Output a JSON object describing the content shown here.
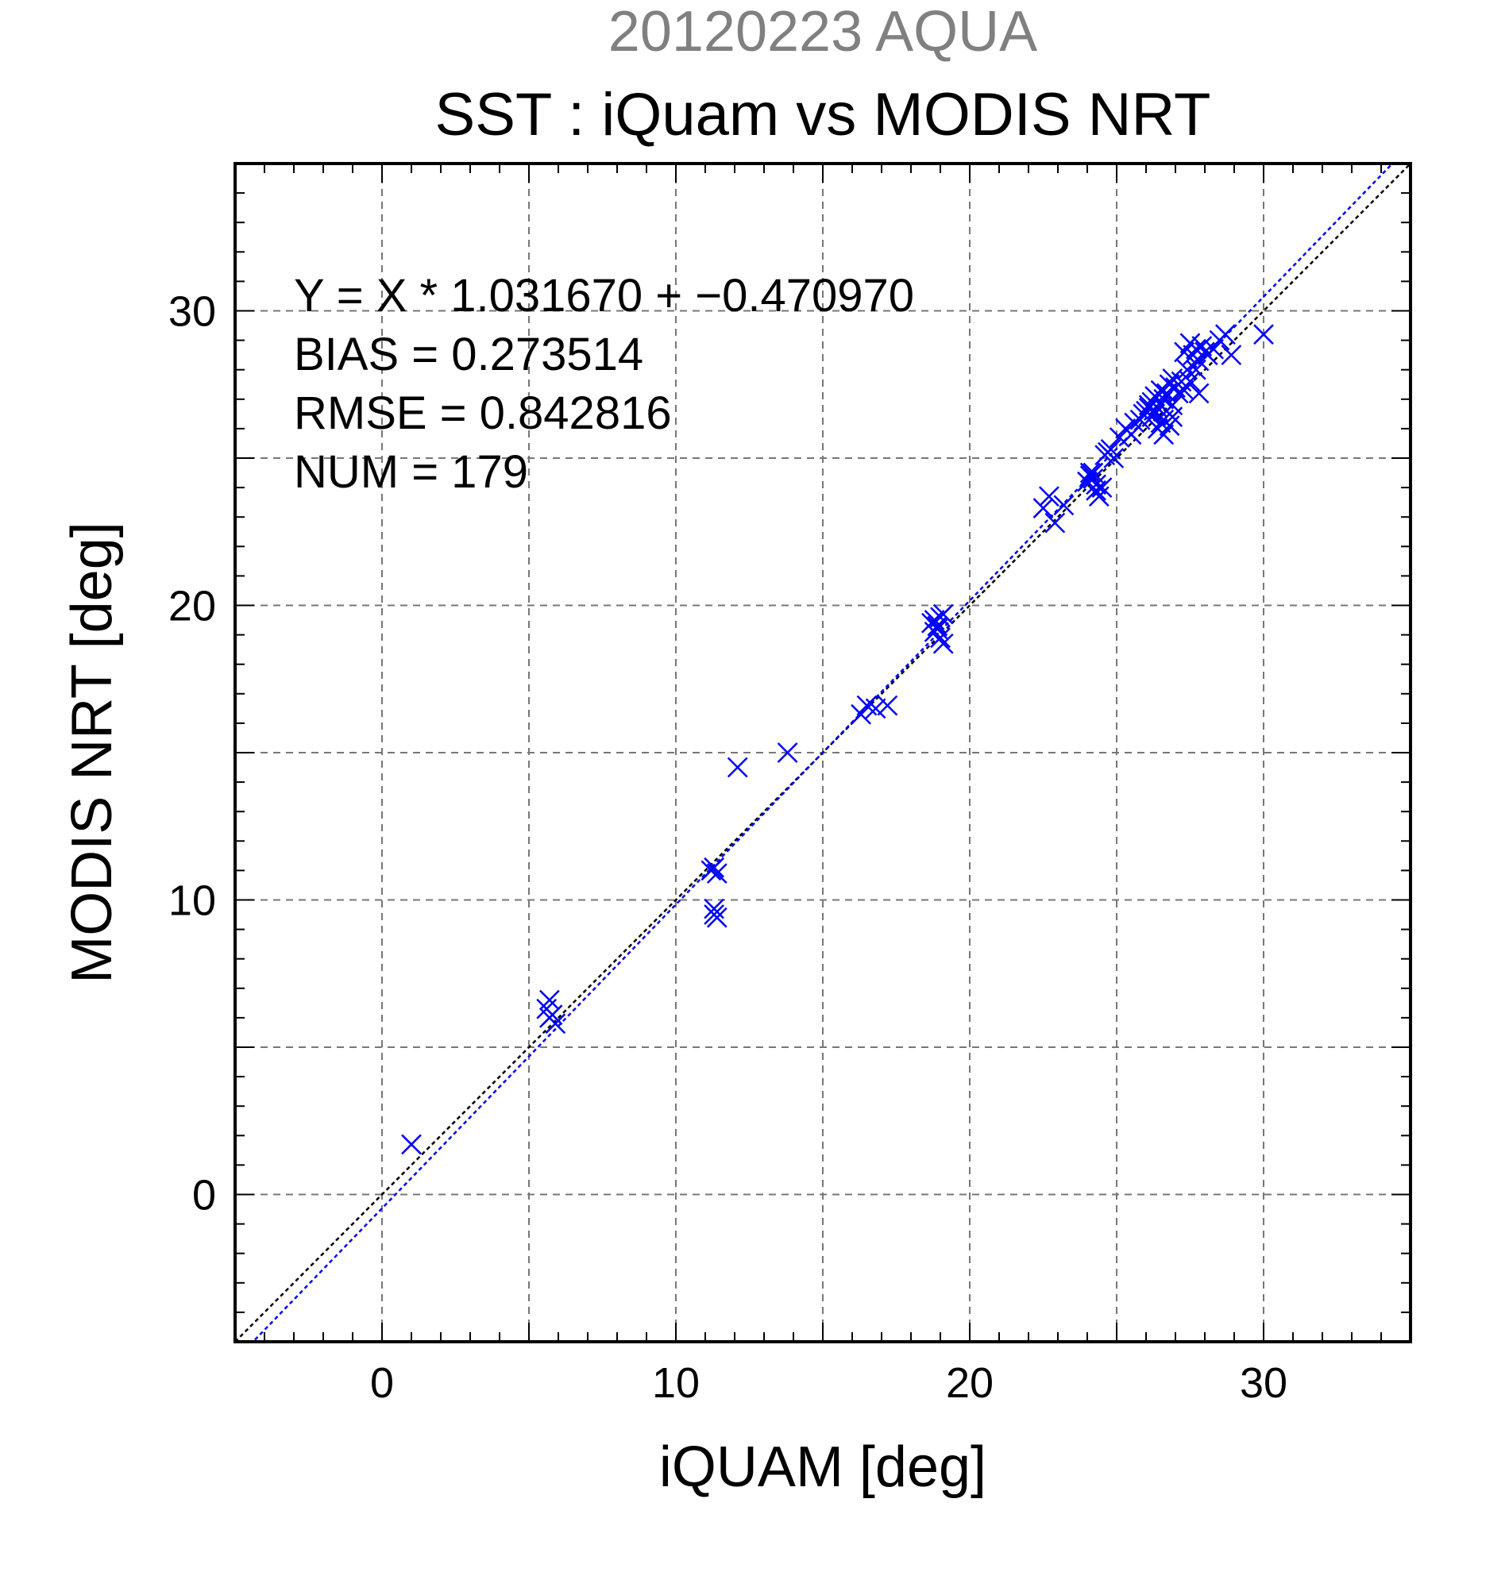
{
  "chart_data": {
    "type": "scatter",
    "date_title": "20120223 AQUA",
    "title": "SST : iQuam vs MODIS NRT",
    "xlabel": "iQUAM [deg]",
    "ylabel": "MODIS NRT [deg]",
    "xlim": [
      -5,
      35
    ],
    "ylim": [
      -5,
      35
    ],
    "xticks": [
      0,
      10,
      20,
      30
    ],
    "yticks": [
      0,
      10,
      20,
      30
    ],
    "grid": true,
    "stats": {
      "regression": "Y = X * 1.031670 + −0.470970",
      "bias": "BIAS = 0.273514",
      "rmse": "RMSE = 0.842816",
      "num": "NUM = 179"
    },
    "regression_line": {
      "slope": 1.03167,
      "intercept": -0.47097,
      "color": "#0000ff"
    },
    "identity_line": {
      "slope": 1,
      "intercept": 0,
      "color": "#000000"
    },
    "marker_color": "#0000ff",
    "points": [
      [
        1.0,
        1.7
      ],
      [
        5.7,
        6.6
      ],
      [
        5.6,
        6.3
      ],
      [
        5.8,
        6.1
      ],
      [
        5.9,
        5.8
      ],
      [
        5.7,
        6.0
      ],
      [
        11.2,
        11.0
      ],
      [
        11.3,
        11.1
      ],
      [
        11.4,
        10.9
      ],
      [
        11.3,
        9.7
      ],
      [
        11.4,
        9.4
      ],
      [
        11.3,
        9.5
      ],
      [
        12.1,
        14.5
      ],
      [
        13.8,
        15.0
      ],
      [
        16.3,
        16.3
      ],
      [
        16.5,
        16.6
      ],
      [
        16.8,
        16.5
      ],
      [
        17.2,
        16.6
      ],
      [
        18.7,
        19.4
      ],
      [
        18.8,
        19.5
      ],
      [
        18.9,
        19.3
      ],
      [
        19.0,
        19.6
      ],
      [
        19.1,
        19.7
      ],
      [
        19.0,
        18.9
      ],
      [
        19.1,
        18.7
      ],
      [
        18.9,
        19.2
      ],
      [
        18.8,
        19.1
      ],
      [
        22.5,
        23.3
      ],
      [
        22.7,
        23.7
      ],
      [
        22.9,
        22.8
      ],
      [
        23.2,
        23.4
      ],
      [
        24.0,
        24.2
      ],
      [
        24.1,
        24.4
      ],
      [
        24.2,
        24.5
      ],
      [
        24.3,
        24.1
      ],
      [
        24.3,
        23.9
      ],
      [
        24.4,
        23.7
      ],
      [
        24.5,
        24.0
      ],
      [
        24.2,
        24.3
      ],
      [
        24.1,
        24.5
      ],
      [
        24.6,
        25.1
      ],
      [
        24.7,
        25.2
      ],
      [
        24.8,
        25.3
      ],
      [
        24.9,
        25.0
      ],
      [
        25.1,
        25.7
      ],
      [
        25.3,
        26.0
      ],
      [
        25.5,
        25.8
      ],
      [
        25.6,
        26.2
      ],
      [
        25.8,
        26.3
      ],
      [
        25.9,
        26.5
      ],
      [
        26.0,
        26.6
      ],
      [
        26.1,
        26.8
      ],
      [
        26.2,
        26.9
      ],
      [
        26.3,
        27.1
      ],
      [
        26.3,
        26.5
      ],
      [
        26.4,
        26.7
      ],
      [
        26.5,
        26.2
      ],
      [
        26.4,
        26.0
      ],
      [
        26.6,
        25.8
      ],
      [
        26.5,
        27.3
      ],
      [
        26.6,
        27.0
      ],
      [
        26.7,
        26.6
      ],
      [
        26.8,
        27.5
      ],
      [
        26.9,
        26.8
      ],
      [
        26.7,
        27.2
      ],
      [
        26.8,
        26.1
      ],
      [
        26.9,
        27.7
      ],
      [
        27.0,
        27.4
      ],
      [
        27.1,
        27.2
      ],
      [
        27.2,
        27.6
      ],
      [
        27.3,
        27.3
      ],
      [
        27.4,
        28.0
      ],
      [
        27.5,
        27.6
      ],
      [
        27.3,
        28.6
      ],
      [
        27.5,
        28.9
      ],
      [
        27.6,
        28.5
      ],
      [
        27.7,
        28.7
      ],
      [
        27.8,
        28.3
      ],
      [
        27.9,
        28.8
      ],
      [
        27.7,
        28.0
      ],
      [
        27.8,
        27.2
      ],
      [
        28.0,
        28.6
      ],
      [
        28.1,
        28.5
      ],
      [
        28.3,
        28.7
      ],
      [
        28.5,
        29.0
      ],
      [
        28.7,
        29.2
      ],
      [
        28.9,
        28.5
      ],
      [
        30.0,
        29.2
      ],
      [
        26.2,
        26.4
      ],
      [
        26.1,
        26.7
      ],
      [
        26.6,
        26.3
      ],
      [
        26.9,
        26.4
      ]
    ]
  }
}
